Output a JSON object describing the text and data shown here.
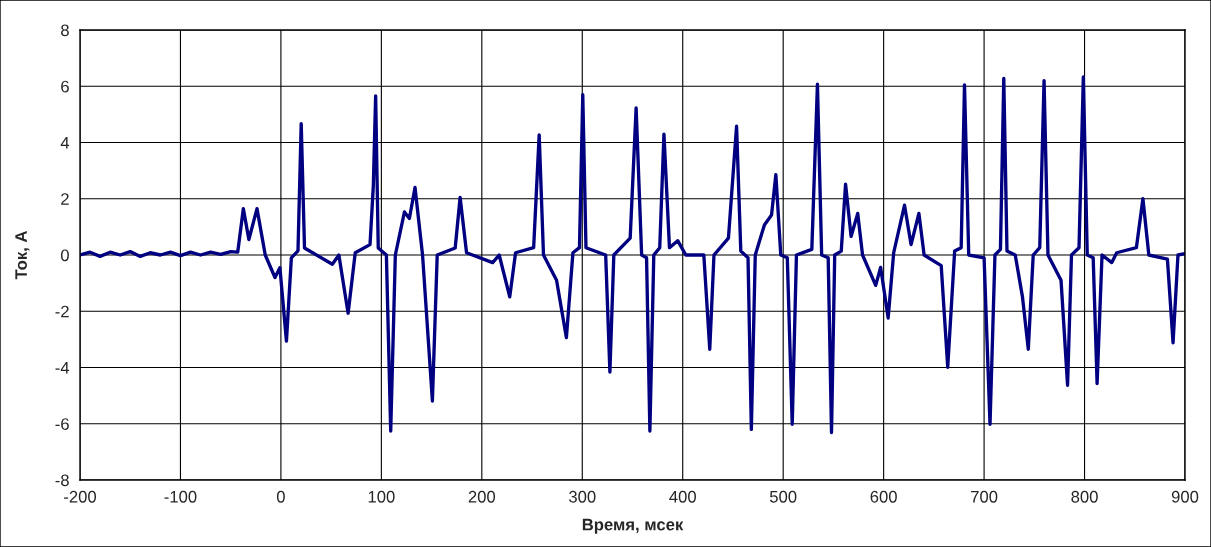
{
  "chart_data": {
    "type": "line",
    "xlabel": "Время, мсек",
    "ylabel": "Ток, А",
    "xlim": [
      -200,
      900
    ],
    "xticks": [
      -200,
      -100,
      0,
      100,
      200,
      300,
      400,
      500,
      600,
      700,
      800,
      900
    ],
    "ylim": [
      -8,
      8
    ],
    "yticks": [
      -8,
      -6,
      -4,
      -2,
      0,
      2,
      4,
      6,
      8
    ],
    "grid": true,
    "line_style": "solid",
    "series": [
      {
        "color": "#000080",
        "x": [
          -200,
          -190,
          -180,
          -170,
          -160,
          -150,
          -140,
          -130,
          -120,
          -110,
          -100,
          -90,
          -80,
          -70,
          -60,
          -50,
          -43,
          -37.4,
          -31.9,
          -23.8,
          -15.6,
          -5.9,
          -1,
          5.5,
          10.4,
          17,
          20.2,
          23.5,
          51.2,
          57.7,
          66.9,
          74,
          88.7,
          92,
          94.3,
          96.9,
          105,
          109.3,
          113.9,
          123,
          127.9,
          133.5,
          141,
          150.8,
          155.6,
          173.5,
          178.4,
          184.8,
          210.8,
          217.3,
          227.8,
          233.6,
          251.6,
          257.1,
          261.4,
          274.4,
          284.2,
          290.7,
          297.2,
          300.5,
          303.7,
          323.3,
          327.5,
          331.4,
          347.7,
          353.6,
          359.1,
          364,
          367.3,
          371.2,
          377.1,
          381.3,
          386.8,
          395,
          403.1,
          421,
          426.9,
          431.1,
          445.5,
          453.6,
          457.8,
          465,
          468.3,
          472.2,
          481.3,
          488.4,
          492.7,
          497.6,
          504.1,
          509,
          513.2,
          528.5,
          534.1,
          538.3,
          544.8,
          548.1,
          551.3,
          557.8,
          562.1,
          567.6,
          574.2,
          579,
          592.1,
          597,
          604.5,
          610,
          620.8,
          627.3,
          635.1,
          640.3,
          657.3,
          663.8,
          670.7,
          677.2,
          680.5,
          684.7,
          700,
          705.9,
          710.8,
          716.3,
          719.6,
          722.8,
          731,
          738.2,
          744,
          748.9,
          755.4,
          759.7,
          763.6,
          776.6,
          783.1,
          787,
          794.5,
          798.8,
          802.7,
          808.6,
          812.5,
          817.4,
          827.1,
          832,
          851.6,
          858.1,
          864,
          882.5,
          888.1,
          893,
          900
        ],
        "values": [
          0.0,
          0.1,
          -0.05,
          0.1,
          0.0,
          0.12,
          -0.05,
          0.08,
          0.0,
          0.1,
          -0.02,
          0.1,
          0.0,
          0.1,
          0.02,
          0.12,
          0.1,
          1.65,
          0.55,
          1.65,
          0.0,
          -0.8,
          -0.45,
          -3.06,
          -0.1,
          0.15,
          4.67,
          0.25,
          -0.33,
          0.0,
          -2.07,
          0.08,
          0.37,
          2.46,
          5.66,
          0.25,
          0.0,
          -6.26,
          0.0,
          1.53,
          1.3,
          2.4,
          0.0,
          -5.19,
          0.0,
          0.25,
          2.05,
          0.08,
          -0.27,
          0.0,
          -1.49,
          0.08,
          0.26,
          4.27,
          0.0,
          -0.9,
          -2.94,
          0.08,
          0.26,
          5.7,
          0.26,
          0.0,
          -4.16,
          0.0,
          0.6,
          5.23,
          0.0,
          -0.1,
          -6.26,
          0.0,
          0.26,
          4.3,
          0.26,
          0.51,
          0.0,
          0.0,
          -3.35,
          0.0,
          0.6,
          4.58,
          0.14,
          -0.1,
          -6.2,
          0.0,
          1.07,
          1.42,
          2.86,
          0.0,
          -0.1,
          -6.02,
          0.0,
          0.2,
          6.07,
          0.0,
          -0.1,
          -6.31,
          0.0,
          0.14,
          2.52,
          0.66,
          1.48,
          0.0,
          -1.08,
          -0.44,
          -2.24,
          0.08,
          1.77,
          0.37,
          1.48,
          0.0,
          -0.38,
          -3.99,
          0.14,
          0.26,
          6.05,
          0.0,
          -0.1,
          -6.02,
          0.0,
          0.2,
          6.28,
          0.14,
          0.0,
          -1.49,
          -3.35,
          0.0,
          0.26,
          6.2,
          0.0,
          -0.9,
          -4.63,
          0.0,
          0.26,
          6.33,
          0.0,
          -0.1,
          -4.57,
          0.0,
          -0.27,
          0.08,
          0.26,
          2.0,
          0.0,
          -0.15,
          -3.12,
          0.0,
          0.05
        ]
      }
    ]
  }
}
